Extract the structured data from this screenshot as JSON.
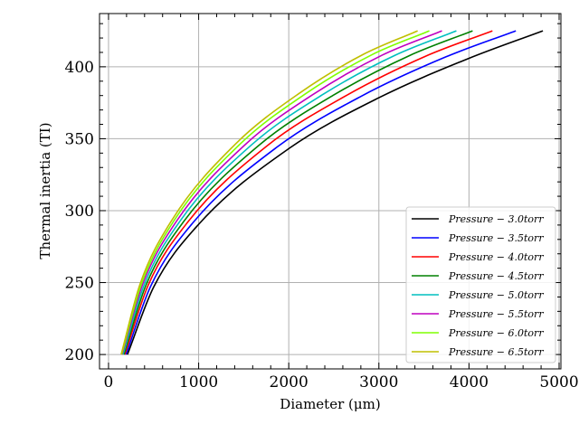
{
  "chart_data": {
    "type": "line",
    "xlabel": "Diameter (μm)",
    "ylabel": "Thermal inertia (TI)",
    "xlim": [
      -100,
      5020
    ],
    "ylim": [
      190,
      437
    ],
    "x_ticks": [
      0,
      1000,
      2000,
      3000,
      4000,
      5000
    ],
    "y_ticks": [
      200,
      250,
      300,
      350,
      400
    ],
    "x_tick_labels": [
      "0",
      "1000",
      "2000",
      "3000",
      "4000",
      "5000"
    ],
    "y_tick_labels": [
      "200",
      "250",
      "300",
      "350",
      "400"
    ],
    "grid": true,
    "legend_position": "lower-right",
    "series": [
      {
        "name": "Pressure − 3.0torr",
        "color": "#000000",
        "x": [
          210,
          500,
          1000,
          2000,
          3000,
          4000,
          4820
        ],
        "y": [
          200,
          246.8,
          290.5,
          343.1,
          378.5,
          405.9,
          425
        ]
      },
      {
        "name": "Pressure − 3.5torr",
        "color": "#0000ff",
        "x": [
          195,
          465,
          935,
          1870,
          2800,
          3740,
          4520
        ],
        "y": [
          200,
          247.1,
          291.5,
          344.2,
          379.4,
          406.8,
          425
        ]
      },
      {
        "name": "Pressure − 4.0torr",
        "color": "#ff0000",
        "x": [
          180,
          440,
          880,
          1760,
          2640,
          3520,
          4260
        ],
        "y": [
          200,
          248.2,
          292.1,
          345.1,
          380.1,
          407.4,
          425
        ]
      },
      {
        "name": "Pressure − 4.5torr",
        "color": "#008000",
        "x": [
          170,
          415,
          835,
          1670,
          2505,
          3340,
          4040
        ],
        "y": [
          200,
          248.1,
          292.5,
          345.5,
          380.6,
          407.8,
          425
        ]
      },
      {
        "name": "Pressure − 5.0torr",
        "color": "#00bfbf",
        "x": [
          160,
          395,
          795,
          1590,
          2385,
          3180,
          3860
        ],
        "y": [
          200,
          248.3,
          292.9,
          345.9,
          381.0,
          408.0,
          425
        ]
      },
      {
        "name": "Pressure − 5.5torr",
        "color": "#bf00bf",
        "x": [
          150,
          380,
          760,
          1520,
          2280,
          3040,
          3700
        ],
        "y": [
          200,
          249.0,
          293.2,
          346.1,
          381.2,
          408.2,
          425
        ]
      },
      {
        "name": "Pressure − 6.0torr",
        "color": "#7fff00",
        "x": [
          145,
          365,
          730,
          1460,
          2190,
          2920,
          3560
        ],
        "y": [
          200,
          249.0,
          293.4,
          346.3,
          381.4,
          408.3,
          425
        ]
      },
      {
        "name": "Pressure − 6.5torr",
        "color": "#bfbf00",
        "x": [
          140,
          350,
          705,
          1410,
          2115,
          2820,
          3430
        ],
        "y": [
          200,
          249.0,
          293.6,
          346.4,
          381.5,
          408.4,
          425
        ]
      }
    ]
  }
}
